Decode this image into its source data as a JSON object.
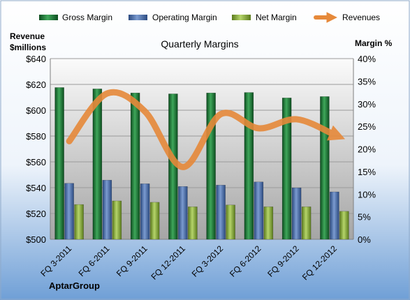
{
  "chart_data": {
    "type": "bar",
    "title": "Quarterly Margins",
    "left_axis_label_line1": "Revenue",
    "left_axis_label_line2": "$millions",
    "right_axis_label": "Margin %",
    "footer": "AptarGroup",
    "categories": [
      "FQ 3-2011",
      "FQ 6-2011",
      "FQ 9-2011",
      "FQ 12-2011",
      "FQ 3-2012",
      "FQ 6-2012",
      "FQ 9-2012",
      "FQ 12-2012"
    ],
    "left_ticks": [
      "$500",
      "$520",
      "$540",
      "$560",
      "$580",
      "$600",
      "$620",
      "$640"
    ],
    "right_ticks": [
      "0%",
      "5%",
      "10%",
      "15%",
      "20%",
      "25%",
      "30%",
      "35%",
      "40%"
    ],
    "ylim_left": [
      500,
      640
    ],
    "ylim_right": [
      0,
      40
    ],
    "legend_position": "top",
    "grid": true,
    "series": [
      {
        "name": "Gross Margin",
        "axis": "right",
        "kind": "bar",
        "color": "#1e7a3a",
        "values": [
          33.6,
          33.3,
          32.4,
          32.2,
          32.4,
          32.5,
          31.3,
          31.6
        ]
      },
      {
        "name": "Operating Margin",
        "axis": "right",
        "kind": "bar",
        "color": "#4a6fae",
        "values": [
          12.4,
          13.1,
          12.3,
          11.7,
          12.0,
          12.7,
          11.4,
          10.5
        ]
      },
      {
        "name": "Net Margin",
        "axis": "right",
        "kind": "bar",
        "color": "#8aac3e",
        "values": [
          7.7,
          8.5,
          8.2,
          7.2,
          7.6,
          7.2,
          7.2,
          6.2
        ]
      },
      {
        "name": "Revenues",
        "axis": "left",
        "kind": "line",
        "color": "#e6893a",
        "values": [
          576,
          613,
          599,
          556,
          597,
          586,
          593,
          581
        ]
      }
    ]
  }
}
